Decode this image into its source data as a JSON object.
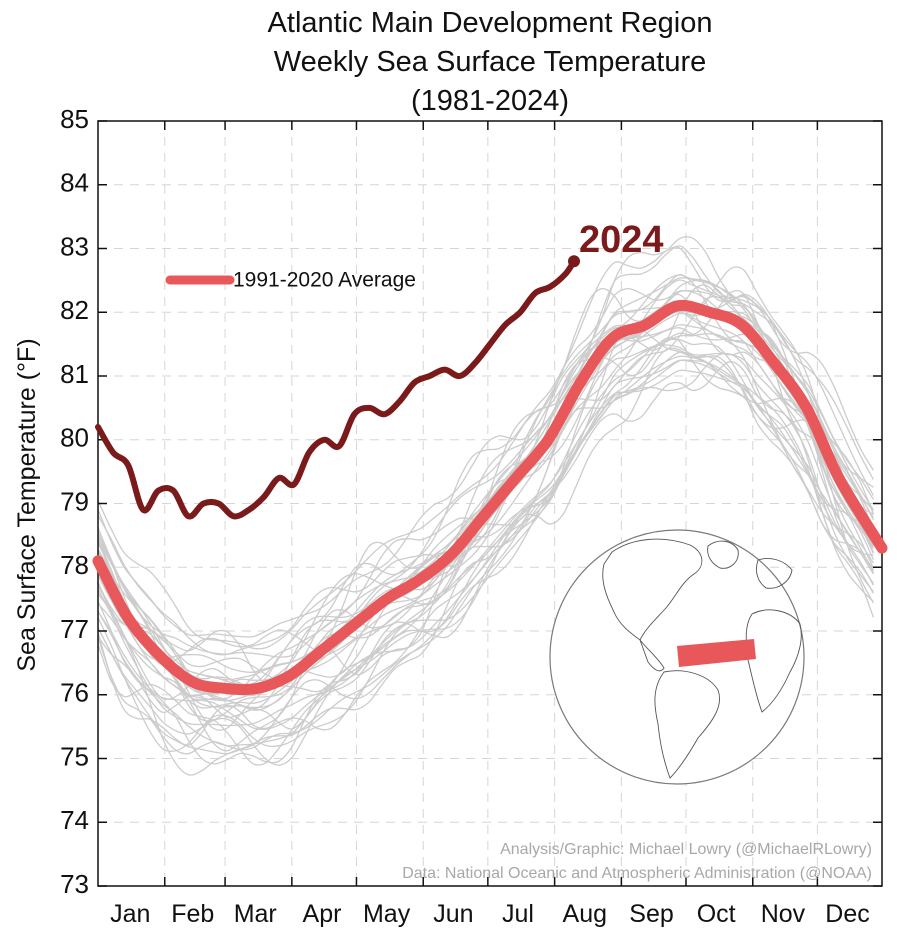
{
  "chart_data": {
    "type": "line",
    "title": [
      "Atlantic Main Development Region",
      "Weekly Sea Surface Temperature",
      "(1981-2024)"
    ],
    "ylabel": "Sea Surface Temperature (°F)",
    "xlabel": "",
    "ylim": [
      73,
      85
    ],
    "yticks": [
      73,
      74,
      75,
      76,
      77,
      78,
      79,
      80,
      81,
      82,
      83,
      84,
      85
    ],
    "xlim": [
      1,
      365
    ],
    "months": [
      {
        "label": "Jan",
        "day": 16
      },
      {
        "label": "Feb",
        "day": 45
      },
      {
        "label": "Mar",
        "day": 74
      },
      {
        "label": "Apr",
        "day": 105
      },
      {
        "label": "May",
        "day": 135
      },
      {
        "label": "Jun",
        "day": 166
      },
      {
        "label": "Jul",
        "day": 196
      },
      {
        "label": "Aug",
        "day": 227
      },
      {
        "label": "Sep",
        "day": 258
      },
      {
        "label": "Oct",
        "day": 288
      },
      {
        "label": "Nov",
        "day": 319
      },
      {
        "label": "Dec",
        "day": 349
      }
    ],
    "grid": true,
    "legend": {
      "position": "upper-left",
      "entries": [
        "1991-2020 Average"
      ]
    },
    "annotations": [
      "2024"
    ],
    "series": [
      {
        "name": "1991-2020 Average",
        "color": "#e8585a",
        "x": [
          1,
          15,
          30,
          45,
          60,
          75,
          90,
          105,
          120,
          135,
          150,
          165,
          180,
          195,
          210,
          225,
          240,
          255,
          270,
          285,
          300,
          315,
          330,
          345,
          365
        ],
        "y": [
          78.1,
          77.2,
          76.6,
          76.2,
          76.1,
          76.1,
          76.3,
          76.7,
          77.1,
          77.5,
          77.8,
          78.2,
          78.8,
          79.4,
          80.0,
          80.9,
          81.6,
          81.8,
          82.1,
          82.0,
          81.8,
          81.2,
          80.5,
          79.4,
          78.3
        ]
      },
      {
        "name": "2024",
        "color": "#7a1a1a",
        "x": [
          1,
          8,
          15,
          22,
          29,
          36,
          43,
          50,
          57,
          64,
          71,
          78,
          85,
          92,
          99,
          106,
          113,
          120,
          127,
          134,
          141,
          148,
          155,
          162,
          169,
          176,
          183,
          190,
          197,
          204,
          211,
          218,
          222
        ],
        "y": [
          80.2,
          79.8,
          79.6,
          78.9,
          79.2,
          79.2,
          78.8,
          79.0,
          79.0,
          78.8,
          78.9,
          79.1,
          79.4,
          79.3,
          79.8,
          80.0,
          79.9,
          80.4,
          80.5,
          80.4,
          80.6,
          80.9,
          81.0,
          81.1,
          81.0,
          81.2,
          81.5,
          81.8,
          82.0,
          82.3,
          82.4,
          82.6,
          82.8
        ]
      }
    ]
  },
  "credits": {
    "analysis": "Analysis/Graphic: Michael Lowry (@MichaelRLowry)",
    "data": "Data: National Oceanic and Atmospheric Administration (@NOAA)"
  },
  "colors": {
    "average": "#e8585a",
    "current_year": "#7a1a1a",
    "historical": "#cccccc",
    "region_highlight": "#e8585a"
  }
}
